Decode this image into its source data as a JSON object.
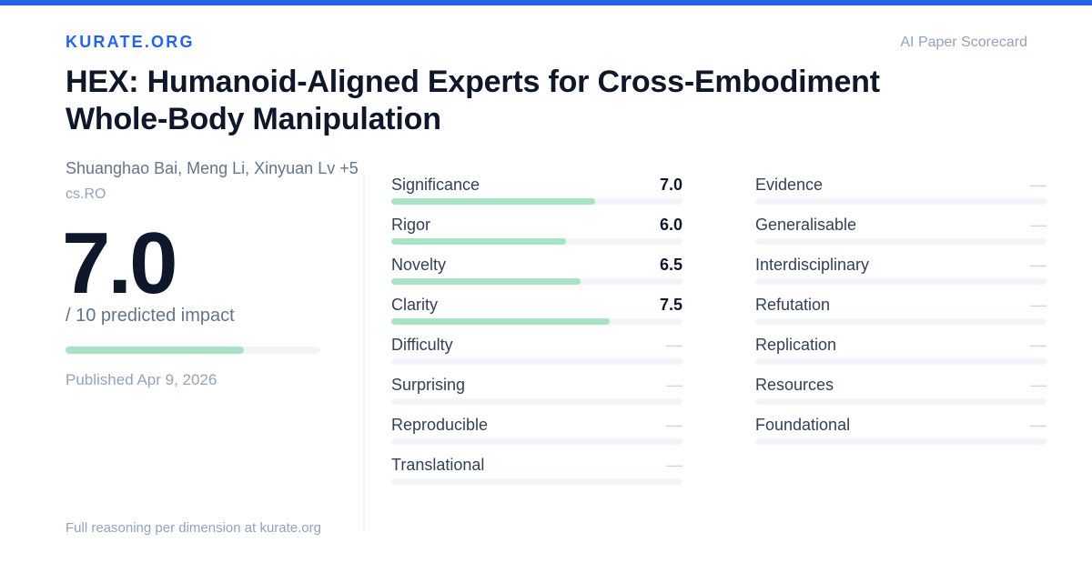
{
  "brand": "KURATE.ORG",
  "tagline": "AI Paper Scorecard",
  "paper": {
    "title_line1": "HEX: Humanoid-Aligned Experts for Cross-Embodiment",
    "title_line2": "Whole-Body Manipulation",
    "authors": "Shuanghao Bai, Meng Li, Xinyuan Lv +5",
    "category": "cs.RO"
  },
  "score": {
    "value": "7.0",
    "max_label": "/ 10 predicted impact",
    "fraction": 0.7
  },
  "published": "Published Apr 9, 2026",
  "footer": "Full reasoning per dimension at kurate.org",
  "dimensions_left": [
    {
      "label": "Significance",
      "value": "7.0",
      "fraction": 0.7
    },
    {
      "label": "Rigor",
      "value": "6.0",
      "fraction": 0.6
    },
    {
      "label": "Novelty",
      "value": "6.5",
      "fraction": 0.65
    },
    {
      "label": "Clarity",
      "value": "7.5",
      "fraction": 0.75
    },
    {
      "label": "Difficulty",
      "value": "—",
      "fraction": 0
    },
    {
      "label": "Surprising",
      "value": "—",
      "fraction": 0
    },
    {
      "label": "Reproducible",
      "value": "—",
      "fraction": 0
    },
    {
      "label": "Translational",
      "value": "—",
      "fraction": 0
    }
  ],
  "dimensions_right": [
    {
      "label": "Evidence",
      "value": "—",
      "fraction": 0
    },
    {
      "label": "Generalisable",
      "value": "—",
      "fraction": 0
    },
    {
      "label": "Interdisciplinary",
      "value": "—",
      "fraction": 0
    },
    {
      "label": "Refutation",
      "value": "—",
      "fraction": 0
    },
    {
      "label": "Replication",
      "value": "—",
      "fraction": 0
    },
    {
      "label": "Resources",
      "value": "—",
      "fraction": 0
    },
    {
      "label": "Foundational",
      "value": "—",
      "fraction": 0
    }
  ],
  "colors": {
    "accent": "#2563eb",
    "bar_fill": "#a7e3c4",
    "bar_track": "#f1f5f9"
  }
}
